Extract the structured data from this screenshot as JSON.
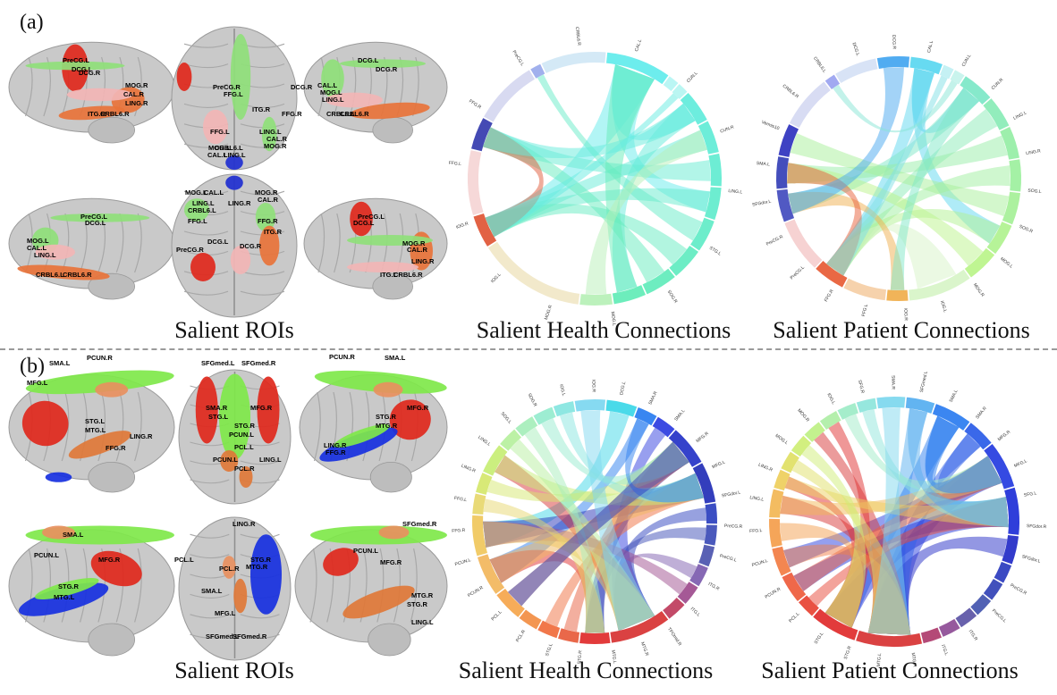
{
  "figure": {
    "panels": [
      {
        "id": "a",
        "label": "(a)",
        "captions": [
          "Salient ROIs",
          "Salient Health Connections",
          "Salient Patient Connections"
        ],
        "roi_labels": [
          "PreCG.L",
          "DCG.L",
          "DCG.R",
          "MOG.R",
          "CAL.R",
          "LING.R",
          "ITG.R",
          "CRBL6.R",
          "FFG.L",
          "FFG.R",
          "CRBL6.L",
          "LING.L",
          "CAL.L",
          "MOG.L",
          "ITG.L",
          "PreCG.R",
          "MOG.L",
          "CAL.L",
          "LING.L",
          "CRBL6.L"
        ],
        "health_labels": [
          "CAL.L",
          "CUN.L",
          "CUN.R",
          "LING.L",
          "STG.L",
          "SOG.R",
          "MOG.L",
          "MOG.R",
          "IOG.L",
          "IOG.R",
          "FFG.L",
          "FFG.R",
          "PreCG.L",
          "CRBL6.R"
        ],
        "patient_labels": [
          "CAL.L",
          "CUN.L",
          "CUN.R",
          "LING.L",
          "LING.R",
          "SOG.L",
          "SOG.R",
          "MOG.L",
          "MOG.R",
          "IOG.L",
          "IOG.R",
          "FFG.L",
          "FFG.R",
          "PreCG.L",
          "PreCG.R",
          "SFGdor.L",
          "SMA.L",
          "Vermis10",
          "CRBL6.R",
          "CRBL6.L",
          "DCG.L",
          "DCG.R"
        ]
      },
      {
        "id": "b",
        "label": "(b)",
        "captions": [
          "Salient ROIs",
          "Salient Health Connections",
          "Salient Patient Connections"
        ],
        "roi_labels": [
          "SMA.L",
          "PCUN.R",
          "MFG.L",
          "STG.L",
          "MTG.L",
          "LING.R",
          "FFG.R",
          "SFGmed.L",
          "SFGmed.R",
          "SMA.R",
          "PCUN.L",
          "MFG.R",
          "STG.R",
          "MTG.R",
          "LING.L",
          "PCL.L",
          "PCL.R",
          "SMA.L",
          "PCUN.L",
          "MFG.R",
          "STG.R",
          "MTG.L",
          "SFGmed.R"
        ],
        "health_labels": [
          "DCG.L",
          "SMA.R",
          "SMA.L",
          "MFG.R",
          "MFG.L",
          "SFGdor.L",
          "PreCG.R",
          "PreCG.L",
          "ITG.R",
          "ITG.L",
          "TPOmid.R",
          "MTG.R",
          "MTG.L",
          "STG.R",
          "STG.L",
          "PCL.R",
          "PCL.L",
          "PCUN.R",
          "PCUN.L",
          "FFG.R",
          "FFG.L",
          "LING.R",
          "LING.L",
          "SOG.L",
          "SOG.R",
          "IOG.L",
          "IOG.R"
        ],
        "patient_labels": [
          "SFGmed.L",
          "SMA.L",
          "SMA.R",
          "MFG.R",
          "MFG.L",
          "SFG.L",
          "SFGdor.R",
          "SFGdor.L",
          "PreCG.R",
          "PreCG.L",
          "ITG.R",
          "ITG.L",
          "MTG.R",
          "MTG.L",
          "STG.R",
          "STG.L",
          "PCL.L",
          "PCUN.R",
          "PCUN.L",
          "FFG.L",
          "LING.L",
          "LING.R",
          "MOG.L",
          "MOG.R",
          "IOG.L",
          "SFG.R",
          "SMA.R"
        ]
      }
    ]
  }
}
